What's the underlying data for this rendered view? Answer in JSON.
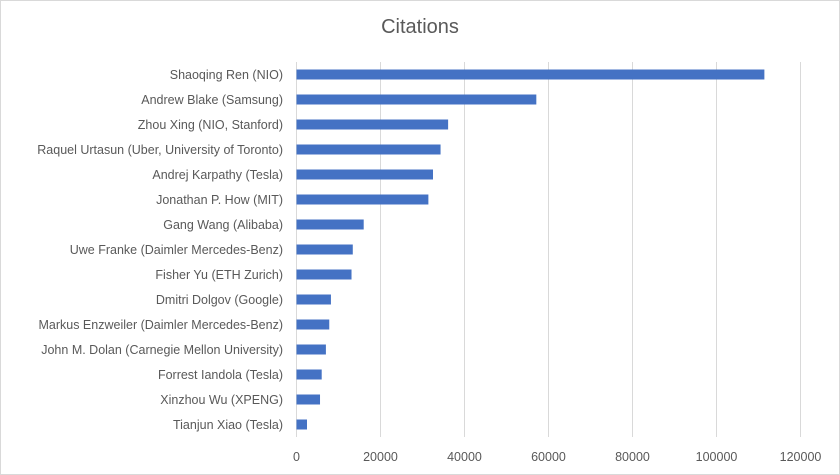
{
  "chart_data": {
    "type": "bar",
    "orientation": "horizontal",
    "title": "Citations",
    "xlabel": "",
    "ylabel": "",
    "xlim": [
      0,
      120000
    ],
    "x_ticks": [
      "0",
      "20000",
      "40000",
      "60000",
      "80000",
      "100000",
      "120000"
    ],
    "grid": true,
    "legend": "none",
    "bar_color": "#4472c4",
    "categories": [
      "Shaoqing Ren (NIO)",
      "Andrew Blake (Samsung)",
      "Zhou Xing (NIO, Stanford)",
      "Raquel Urtasun (Uber, University of Toronto)",
      "Andrej Karpathy (Tesla)",
      "Jonathan P. How (MIT)",
      "Gang Wang (Alibaba)",
      "Uwe Franke (Daimler Mercedes-Benz)",
      "Fisher Yu (ETH Zurich)",
      "Dmitri Dolgov (Google)",
      "Markus Enzweiler (Daimler Mercedes-Benz)",
      "John M. Dolan (Carnegie Mellon University)",
      "Forrest Iandola (Tesla)",
      "Xinzhou Wu (XPENG)",
      "Tianjun Xiao (Tesla)"
    ],
    "values": [
      111400,
      57100,
      36100,
      34300,
      32500,
      31400,
      16000,
      13400,
      13100,
      8200,
      7800,
      7000,
      6000,
      5600,
      2500
    ]
  }
}
